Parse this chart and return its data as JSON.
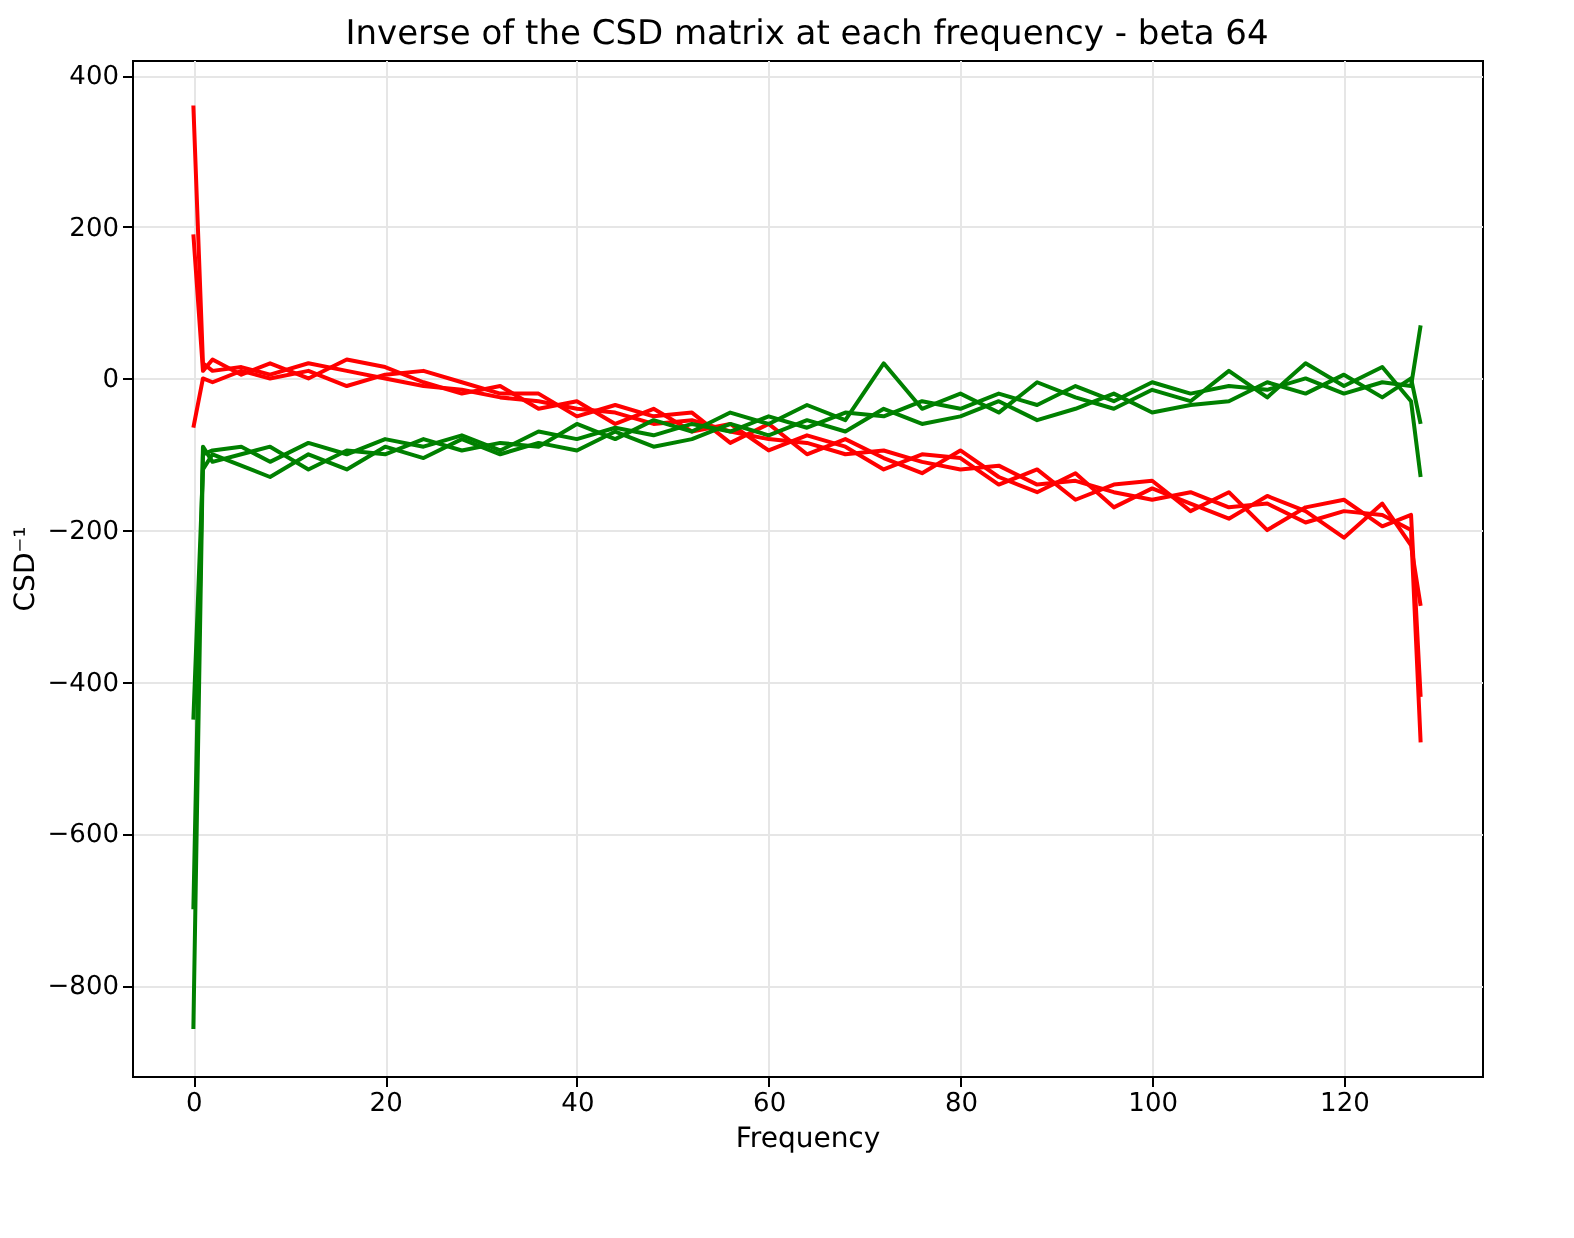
{
  "chart_data": {
    "type": "line",
    "title": "Inverse of the CSD matrix at each frequency - beta 64",
    "xlabel": "Frequency",
    "ylabel": "CSD⁻¹",
    "x": [
      0,
      1,
      2,
      5,
      8,
      12,
      16,
      20,
      24,
      28,
      32,
      36,
      40,
      44,
      48,
      52,
      56,
      60,
      64,
      68,
      72,
      76,
      80,
      84,
      88,
      92,
      96,
      100,
      104,
      108,
      112,
      116,
      120,
      124,
      127,
      128
    ],
    "series": [
      {
        "color": "#ff0000",
        "values": [
          360,
          20,
          10,
          15,
          5,
          20,
          10,
          0,
          -10,
          -15,
          -25,
          -30,
          -40,
          -45,
          -60,
          -55,
          -70,
          -80,
          -85,
          -100,
          -95,
          -110,
          -120,
          -115,
          -140,
          -135,
          -150,
          -160,
          -150,
          -170,
          -165,
          -190,
          -175,
          -180,
          -200,
          -480
        ]
      },
      {
        "color": "#ff0000",
        "values": [
          190,
          10,
          25,
          5,
          20,
          0,
          25,
          15,
          -5,
          -20,
          -10,
          -40,
          -30,
          -60,
          -40,
          -70,
          -60,
          -95,
          -75,
          -90,
          -120,
          -100,
          -105,
          -140,
          -120,
          -160,
          -140,
          -135,
          -175,
          -150,
          -200,
          -170,
          -160,
          -195,
          -180,
          -420
        ]
      },
      {
        "color": "#ff0000",
        "values": [
          -65,
          0,
          -5,
          10,
          0,
          10,
          -10,
          5,
          10,
          -5,
          -20,
          -20,
          -50,
          -35,
          -50,
          -45,
          -85,
          -60,
          -100,
          -80,
          -105,
          -125,
          -95,
          -130,
          -150,
          -125,
          -170,
          -145,
          -165,
          -185,
          -155,
          -175,
          -210,
          -165,
          -220,
          -300
        ]
      },
      {
        "color": "#008000",
        "values": [
          -858,
          -100,
          -95,
          -90,
          -110,
          -85,
          -100,
          -80,
          -90,
          -75,
          -95,
          -70,
          -80,
          -65,
          -75,
          -60,
          -70,
          -50,
          -65,
          -45,
          -50,
          -30,
          -40,
          -20,
          -35,
          -10,
          -30,
          -5,
          -20,
          -10,
          -15,
          0,
          -20,
          -5,
          -10,
          70
        ]
      },
      {
        "color": "#008000",
        "values": [
          -700,
          -90,
          -110,
          -100,
          -90,
          -120,
          -95,
          -100,
          -80,
          -95,
          -85,
          -90,
          -60,
          -80,
          -55,
          -70,
          -45,
          -60,
          -35,
          -55,
          20,
          -40,
          -20,
          -45,
          -5,
          -25,
          -40,
          -15,
          -30,
          10,
          -25,
          20,
          -10,
          15,
          -30,
          -130
        ]
      },
      {
        "color": "#008000",
        "values": [
          -450,
          -120,
          -100,
          -115,
          -130,
          -100,
          -120,
          -90,
          -105,
          -80,
          -100,
          -85,
          -95,
          -70,
          -90,
          -80,
          -60,
          -75,
          -55,
          -70,
          -40,
          -60,
          -50,
          -30,
          -55,
          -40,
          -20,
          -45,
          -35,
          -30,
          -5,
          -20,
          5,
          -25,
          0,
          -60
        ]
      }
    ],
    "xlim": [
      -6.4,
      134.4
    ],
    "ylim": [
      -920,
      420
    ],
    "xticks": [
      0,
      20,
      40,
      60,
      80,
      100,
      120
    ],
    "yticks": [
      -800,
      -600,
      -400,
      -200,
      0,
      200,
      400
    ],
    "grid": true
  }
}
